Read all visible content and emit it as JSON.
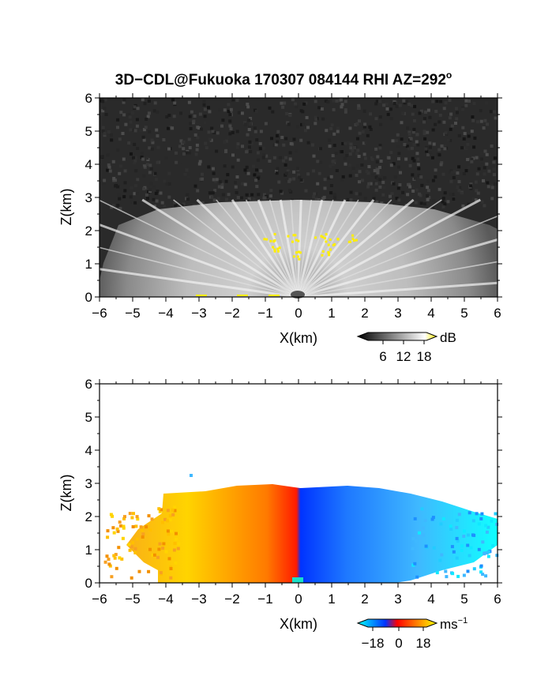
{
  "title_main": "3D−CDL@Fukuoka 170307 084144 RHI AZ=292",
  "title_deg": "o",
  "chart_data": [
    {
      "type": "heatmap",
      "panel": "top",
      "quantity": "SNR",
      "xlabel": "X(km)",
      "ylabel": "Z(km)",
      "xlim": [
        -6,
        6
      ],
      "ylim": [
        0,
        6
      ],
      "xticks": [
        -6,
        -5,
        -4,
        -3,
        -2,
        -1,
        0,
        1,
        2,
        3,
        4,
        5,
        6
      ],
      "yticks": [
        0,
        1,
        2,
        3,
        4,
        5,
        6
      ],
      "colorbar": {
        "unit": "dB",
        "ticks": [
          "6",
          "12",
          "18"
        ],
        "range": [
          0,
          20
        ],
        "colors": [
          "#000000",
          "#ffffff",
          "#ffee00"
        ]
      },
      "fan_top_km": 2.8,
      "background": "noise"
    },
    {
      "type": "heatmap",
      "panel": "bottom",
      "quantity": "Doppler velocity",
      "xlabel": "X(km)",
      "ylabel": "Z(km)",
      "xlim": [
        -6,
        6
      ],
      "ylim": [
        0,
        6
      ],
      "xticks": [
        -6,
        -5,
        -4,
        -3,
        -2,
        -1,
        0,
        1,
        2,
        3,
        4,
        5,
        6
      ],
      "yticks": [
        0,
        1,
        2,
        3,
        4,
        5,
        6
      ],
      "colorbar": {
        "unit": "ms",
        "unit_exp": "−1",
        "ticks": [
          "−18",
          "0",
          "18"
        ],
        "range": [
          -20,
          20
        ],
        "colors": [
          "#00ffff",
          "#0044ff",
          "#ff0000",
          "#ffff00"
        ]
      },
      "fan_top_km": 2.8,
      "background": "white"
    }
  ]
}
